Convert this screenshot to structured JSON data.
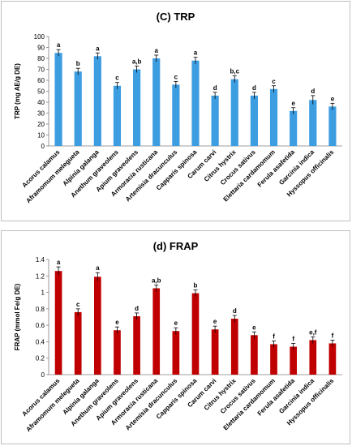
{
  "chart_data": [
    {
      "type": "bar",
      "title": "(C) TRP",
      "ylabel": "TRP (mg  AE/g DE)",
      "xlabel": "",
      "ylim": [
        0,
        100
      ],
      "yticks": [
        "0",
        "10",
        "20",
        "30",
        "40",
        "50",
        "60",
        "70",
        "80",
        "90",
        "100"
      ],
      "grid": false,
      "color": "#3d9de1",
      "categories": [
        "Acorus calamus",
        "Aframomum melegueta",
        "Alpinia galanga",
        "Anethum graveolens",
        "Apium graveolens",
        "Armoracia rusticana",
        "Artemisia dracunculus",
        "Capparis spinosa",
        "Carum carvi",
        "Citrus hystrix",
        "Crocus sativus",
        "Elettaria cardamomum",
        "Ferula asafetida",
        "Garcinia indica",
        "Hyssopus officinalis"
      ],
      "values": [
        85,
        68,
        82,
        55,
        70,
        80,
        56,
        78,
        46,
        61,
        46,
        52,
        32,
        42,
        36
      ],
      "errors": [
        3,
        3,
        3,
        3,
        3,
        3,
        3,
        3,
        3,
        3,
        3,
        3,
        3,
        4,
        3
      ],
      "labels": [
        "a",
        "b",
        "a",
        "c",
        "a,b",
        "a",
        "c",
        "a",
        "d",
        "b,c",
        "d",
        "c",
        "e",
        "d",
        "e"
      ]
    },
    {
      "type": "bar",
      "title": "(d) FRAP",
      "ylabel": "FRAP (mmol Fe/g DE)",
      "xlabel": "",
      "ylim": [
        0,
        1.4
      ],
      "yticks": [
        "0",
        "0.2",
        "0.4",
        "0.6",
        "0.8",
        "1",
        "1.2",
        "1.4"
      ],
      "grid": false,
      "color": "#c00000",
      "categories": [
        "Acorus calamus",
        "Aframomum melegueta",
        "Alpinia galanga",
        "Anethum graveolens",
        "Apium graveolens",
        "Armoracia rusticana",
        "Artemisia dracunculus",
        "Capparis spinosa",
        "Carum carvi",
        "Citrus hystrix",
        "Crocus sativus",
        "Elettaria cardamomum",
        "Ferula asafetida",
        "Garcinia indica",
        "Hyssopus officinalis"
      ],
      "values": [
        1.26,
        0.76,
        1.19,
        0.54,
        0.71,
        1.05,
        0.53,
        0.99,
        0.55,
        0.68,
        0.48,
        0.37,
        0.34,
        0.42,
        0.38
      ],
      "errors": [
        0.05,
        0.04,
        0.05,
        0.04,
        0.04,
        0.04,
        0.04,
        0.04,
        0.04,
        0.04,
        0.04,
        0.04,
        0.04,
        0.04,
        0.04
      ],
      "labels": [
        "a",
        "c",
        "a",
        "e",
        "d",
        "a,b",
        "e",
        "b",
        "e",
        "d",
        "e",
        "f",
        "f",
        "e,f",
        "f"
      ]
    }
  ]
}
